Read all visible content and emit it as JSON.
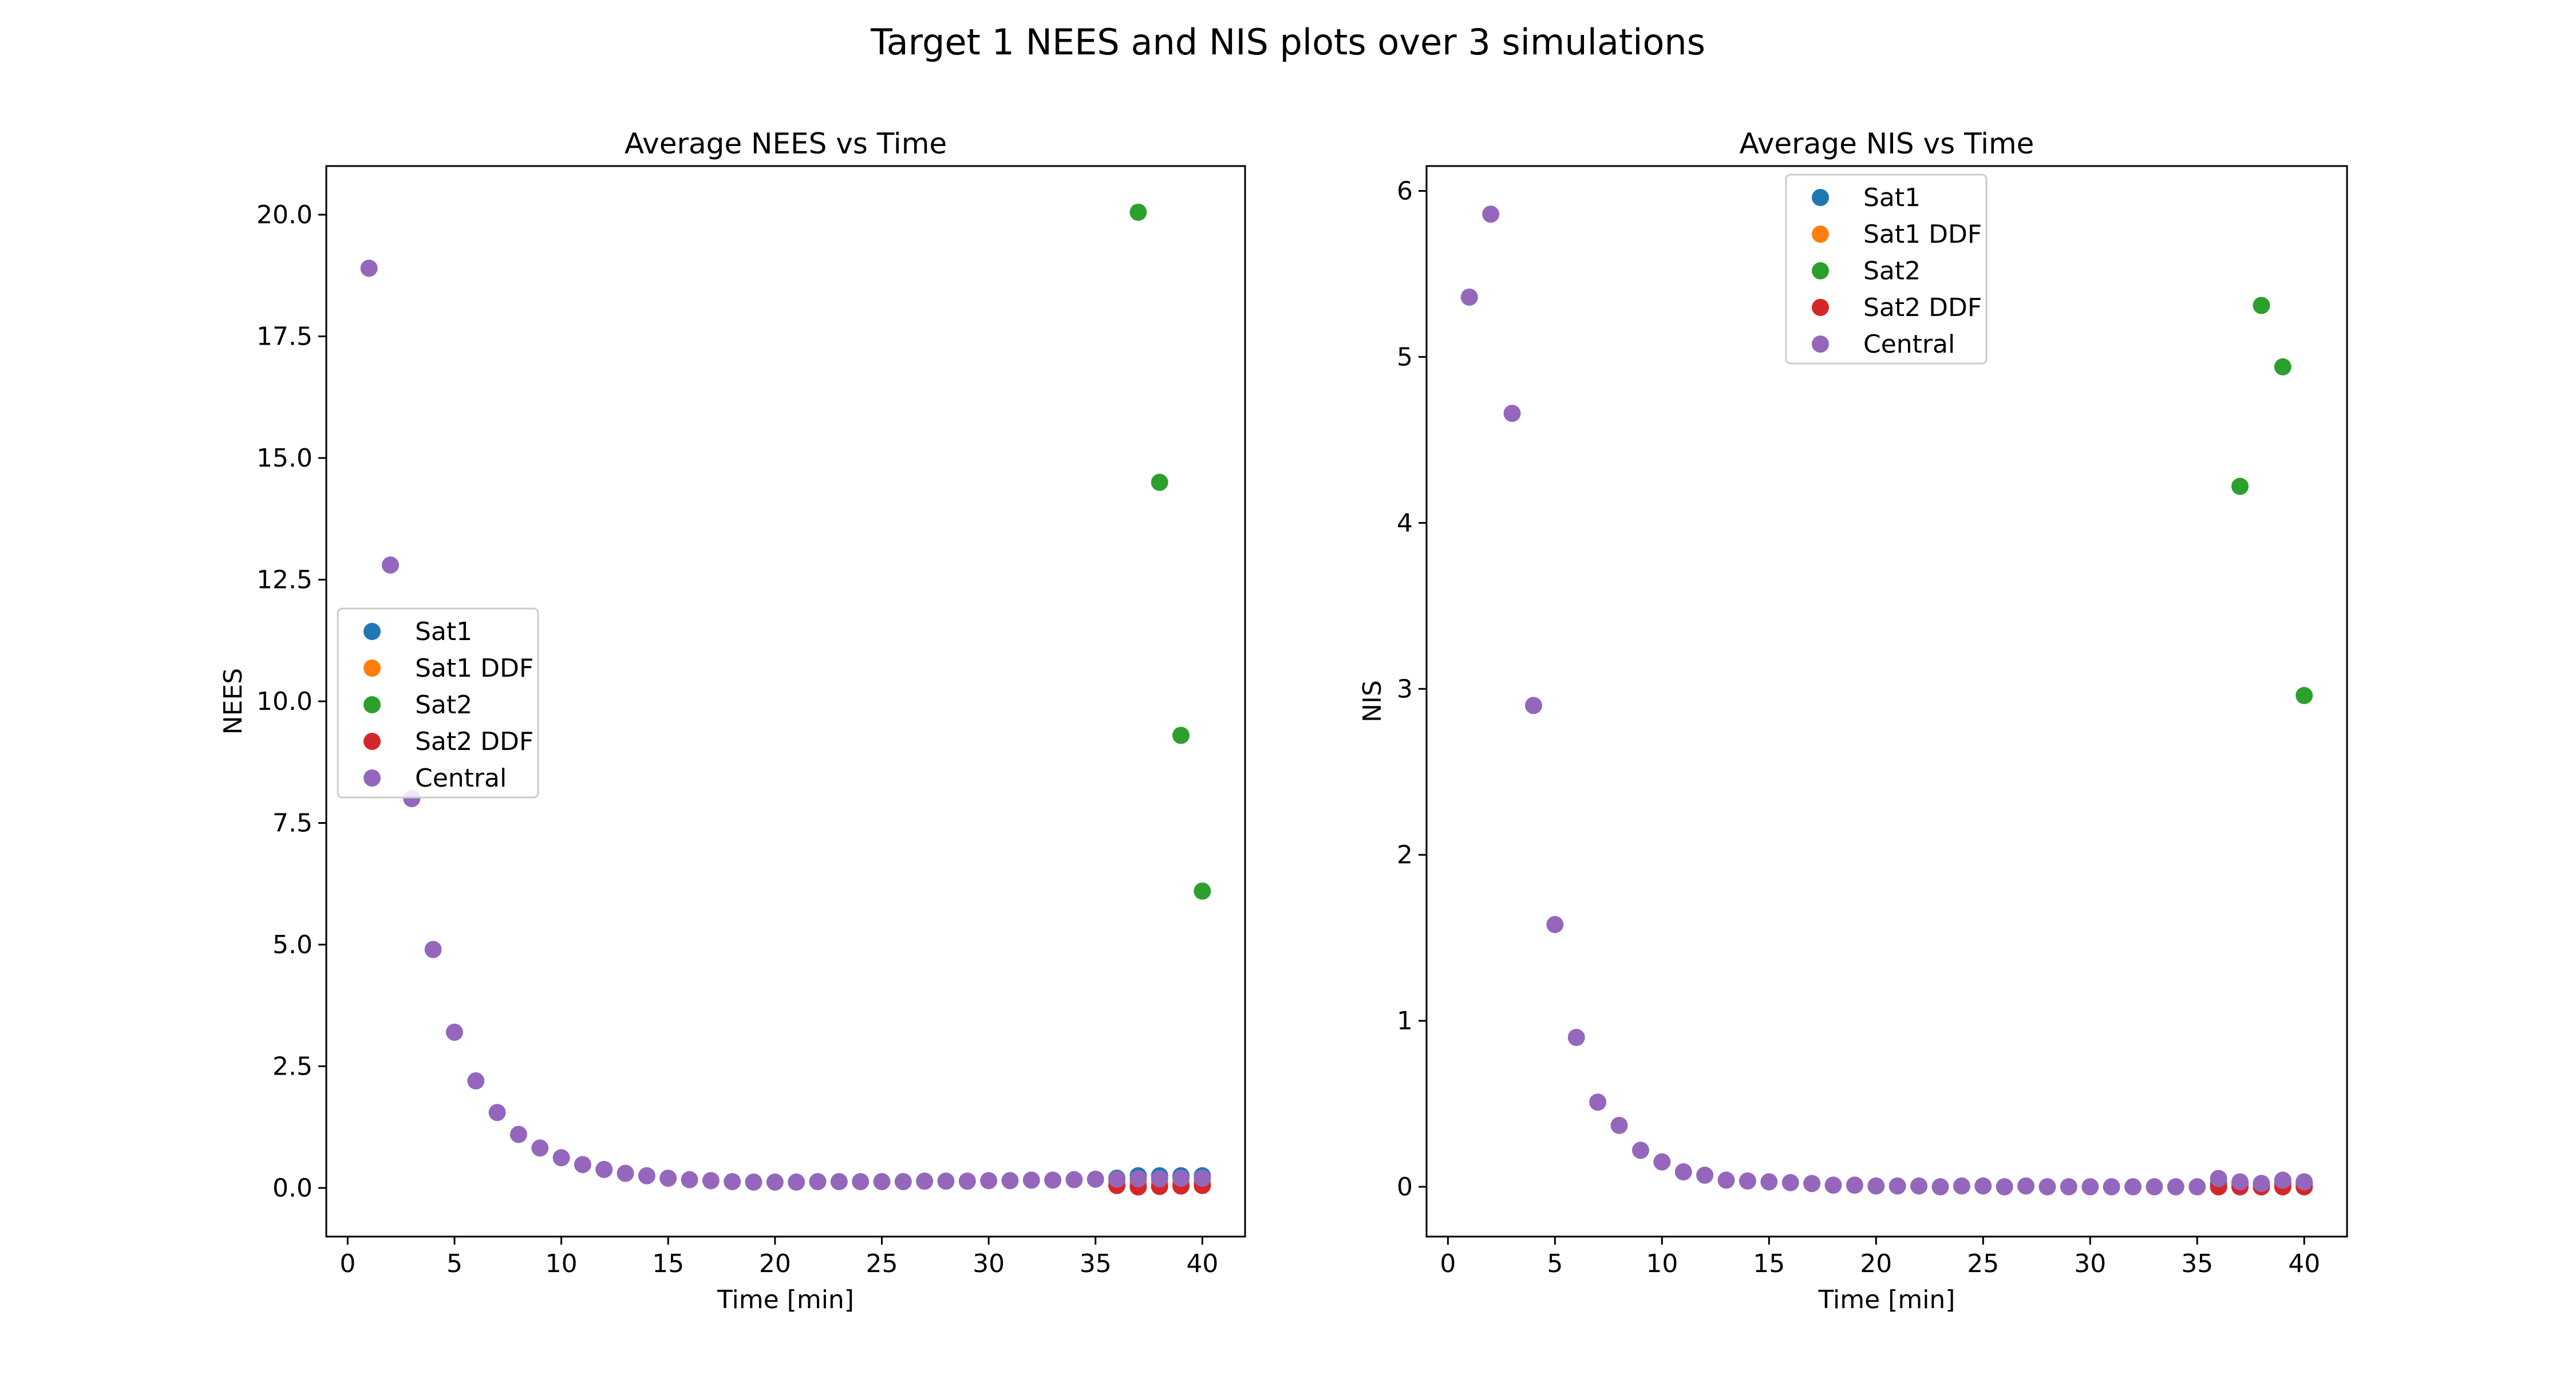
{
  "figure": {
    "suptitle": "Target 1 NEES and NIS plots over 3 simulations"
  },
  "colors": {
    "Sat1": "#1f77b4",
    "Sat1 DDF": "#ff7f0e",
    "Sat2": "#2ca02c",
    "Sat2 DDF": "#d62728",
    "Central": "#9467bd"
  },
  "chart_data": [
    {
      "type": "scatter",
      "title": "Average NEES vs Time",
      "xlabel": "Time [min]",
      "ylabel": "NEES",
      "xlim": [
        -1,
        42
      ],
      "ylim": [
        -1,
        21
      ],
      "xticks": [
        0,
        5,
        10,
        15,
        20,
        25,
        30,
        35,
        40
      ],
      "xtick_labels": [
        "0",
        "5",
        "10",
        "15",
        "20",
        "25",
        "30",
        "35",
        "40"
      ],
      "yticks": [
        0,
        2.5,
        5,
        7.5,
        10,
        12.5,
        15,
        17.5,
        20
      ],
      "ytick_labels": [
        "0.0",
        "2.5",
        "5.0",
        "7.5",
        "10.0",
        "12.5",
        "15.0",
        "17.5",
        "20.0"
      ],
      "grid": false,
      "legend_position": "center-left",
      "series": [
        {
          "name": "Sat1",
          "x": [
            36,
            37,
            38,
            39,
            40
          ],
          "y": [
            0.2,
            0.25,
            0.25,
            0.25,
            0.25
          ]
        },
        {
          "name": "Sat1 DDF",
          "x": [
            36,
            37,
            38,
            39,
            40
          ],
          "y": [
            0.15,
            0.1,
            0.1,
            0.1,
            0.12
          ]
        },
        {
          "name": "Sat2",
          "x": [
            37,
            38,
            39,
            40
          ],
          "y": [
            20.05,
            14.5,
            9.3,
            6.1
          ]
        },
        {
          "name": "Sat2 DDF",
          "x": [
            36,
            37,
            38,
            39,
            40
          ],
          "y": [
            0.05,
            0.02,
            0.03,
            0.04,
            0.05
          ]
        },
        {
          "name": "Central",
          "x": [
            1,
            2,
            3,
            4,
            5,
            6,
            7,
            8,
            9,
            10,
            11,
            12,
            13,
            14,
            15,
            16,
            17,
            18,
            19,
            20,
            21,
            22,
            23,
            24,
            25,
            26,
            27,
            28,
            29,
            30,
            31,
            32,
            33,
            34,
            35,
            36,
            37,
            38,
            39,
            40
          ],
          "y": [
            18.9,
            12.8,
            8.0,
            4.9,
            3.2,
            2.2,
            1.55,
            1.1,
            0.82,
            0.62,
            0.48,
            0.38,
            0.3,
            0.25,
            0.2,
            0.17,
            0.15,
            0.13,
            0.12,
            0.12,
            0.12,
            0.13,
            0.13,
            0.13,
            0.13,
            0.13,
            0.14,
            0.14,
            0.14,
            0.15,
            0.15,
            0.16,
            0.16,
            0.17,
            0.18,
            0.18,
            0.19,
            0.19,
            0.2,
            0.2
          ]
        }
      ]
    },
    {
      "type": "scatter",
      "title": "Average NIS vs Time",
      "xlabel": "Time [min]",
      "ylabel": "NIS",
      "xlim": [
        -1,
        42
      ],
      "ylim": [
        -0.3,
        6.15
      ],
      "xticks": [
        0,
        5,
        10,
        15,
        20,
        25,
        30,
        35,
        40
      ],
      "xtick_labels": [
        "0",
        "5",
        "10",
        "15",
        "20",
        "25",
        "30",
        "35",
        "40"
      ],
      "yticks": [
        0,
        1,
        2,
        3,
        4,
        5,
        6
      ],
      "ytick_labels": [
        "0",
        "1",
        "2",
        "3",
        "4",
        "5",
        "6"
      ],
      "grid": false,
      "legend_position": "upper-center",
      "series": [
        {
          "name": "Sat1",
          "x": [
            36,
            37,
            38,
            39,
            40
          ],
          "y": [
            0.02,
            0.02,
            0.02,
            0.02,
            0.02
          ]
        },
        {
          "name": "Sat1 DDF",
          "x": [
            36,
            37,
            38,
            39,
            40
          ],
          "y": [
            0.0,
            0.0,
            0.0,
            0.0,
            0.0
          ]
        },
        {
          "name": "Sat2",
          "x": [
            37,
            38,
            39,
            40
          ],
          "y": [
            4.22,
            5.31,
            4.94,
            2.96
          ]
        },
        {
          "name": "Sat2 DDF",
          "x": [
            36,
            37,
            38,
            39,
            40
          ],
          "y": [
            0.0,
            0.0,
            0.0,
            0.0,
            0.0
          ]
        },
        {
          "name": "Central",
          "x": [
            1,
            2,
            3,
            4,
            5,
            6,
            7,
            8,
            9,
            10,
            11,
            12,
            13,
            14,
            15,
            16,
            17,
            18,
            19,
            20,
            21,
            22,
            23,
            24,
            25,
            26,
            27,
            28,
            29,
            30,
            31,
            32,
            33,
            34,
            35,
            36,
            37,
            38,
            39,
            40
          ],
          "y": [
            5.36,
            5.86,
            4.66,
            2.9,
            1.58,
            0.9,
            0.51,
            0.37,
            0.22,
            0.15,
            0.09,
            0.07,
            0.04,
            0.035,
            0.03,
            0.025,
            0.02,
            0.01,
            0.01,
            0.005,
            0.005,
            0.005,
            0.0,
            0.005,
            0.005,
            0.0,
            0.005,
            0.0,
            0.0,
            0.0,
            0.0,
            0.0,
            0.0,
            0.0,
            0.0,
            0.05,
            0.03,
            0.02,
            0.04,
            0.03
          ]
        }
      ]
    }
  ]
}
